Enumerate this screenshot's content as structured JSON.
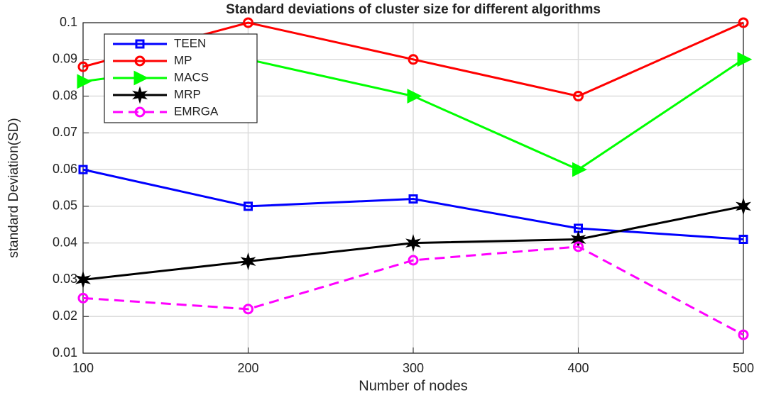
{
  "chart_data": {
    "type": "line",
    "title": "Standard deviations of cluster size for different algorithms",
    "x_label": "Number of nodes",
    "y_label": "standard Deviation(SD)",
    "x": [
      100,
      200,
      300,
      400,
      500
    ],
    "xlim": [
      100,
      500
    ],
    "xticks": [
      100,
      200,
      300,
      400,
      500
    ],
    "ylim": [
      0.01,
      0.1
    ],
    "yticks": [
      0.01,
      0.02,
      0.03,
      0.04,
      0.05,
      0.06,
      0.07,
      0.08,
      0.09,
      0.1
    ],
    "grid": true,
    "legend": "upper left",
    "series": [
      {
        "name": "TEEN",
        "color": "#0000ff",
        "marker": "square",
        "dash": false,
        "values": [
          0.06,
          0.05,
          0.052,
          0.044,
          0.041
        ]
      },
      {
        "name": "MP",
        "color": "#ff0000",
        "marker": "circle",
        "dash": false,
        "values": [
          0.088,
          0.1,
          0.09,
          0.08,
          0.1
        ]
      },
      {
        "name": "MACS",
        "color": "#00ff00",
        "marker": "triangle-right",
        "dash": false,
        "values": [
          0.084,
          0.09,
          0.08,
          0.06,
          0.09
        ]
      },
      {
        "name": "MRP",
        "color": "#000000",
        "marker": "star",
        "dash": false,
        "values": [
          0.03,
          0.035,
          0.04,
          0.041,
          0.05
        ]
      },
      {
        "name": "EMRGA",
        "color": "#ff00ff",
        "marker": "circle",
        "dash": true,
        "values": [
          0.025,
          0.022,
          0.0353,
          0.039,
          0.015
        ]
      }
    ]
  }
}
